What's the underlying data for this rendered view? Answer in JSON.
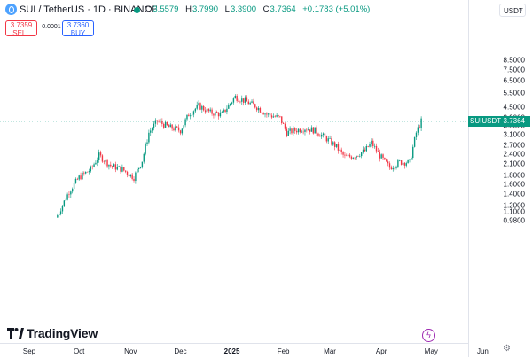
{
  "symbol": {
    "title": "SUI / TetherUS · 1D · BINANCE",
    "ohlc": [
      {
        "label": "O",
        "value": "3.5579"
      },
      {
        "label": "H",
        "value": "3.7990"
      },
      {
        "label": "L",
        "value": "3.3900"
      },
      {
        "label": "C",
        "value": "3.7364"
      }
    ],
    "change": "+0.1783 (+5.01%)"
  },
  "trade": {
    "sell_price": "3.7359",
    "sell_label": "SELL",
    "spread": "0.0001",
    "buy_price": "3.7360",
    "buy_label": "BUY"
  },
  "currency": "USDT",
  "current_price_label": {
    "name": "SUIUSDT",
    "value": "3.7364"
  },
  "branding": "TradingView",
  "colors": {
    "up": "#089981",
    "down": "#f23645",
    "accent": "#2962ff"
  },
  "chart_data": {
    "type": "candlestick",
    "title": "SUI / TetherUS · 1D · BINANCE",
    "y_scale": "log",
    "ylim": [
      0.95,
      9.0
    ],
    "y_ticks": [
      "8.5000",
      "7.5000",
      "6.5000",
      "5.5000",
      "4.5000",
      "3.9000",
      "3.5000",
      "3.1000",
      "2.7000",
      "2.4000",
      "2.1000",
      "1.8000",
      "1.6000",
      "1.4000",
      "1.2000",
      "1.1000",
      "0.9800"
    ],
    "x_ticks": [
      {
        "label": "Sep",
        "bold": false
      },
      {
        "label": "Oct",
        "bold": false
      },
      {
        "label": "Nov",
        "bold": false
      },
      {
        "label": "Dec",
        "bold": false
      },
      {
        "label": "2025",
        "bold": true
      },
      {
        "label": "Feb",
        "bold": false
      },
      {
        "label": "Mar",
        "bold": false
      },
      {
        "label": "Apr",
        "bold": false
      },
      {
        "label": "May",
        "bold": false
      },
      {
        "label": "Jun",
        "bold": false
      }
    ],
    "last_price": 3.7364,
    "series_approx_close": [
      {
        "date": "2024-09-18",
        "close": 1.05
      },
      {
        "date": "2024-09-25",
        "close": 1.45
      },
      {
        "date": "2024-10-01",
        "close": 1.75
      },
      {
        "date": "2024-10-08",
        "close": 1.95
      },
      {
        "date": "2024-10-13",
        "close": 2.35
      },
      {
        "date": "2024-10-20",
        "close": 2.05
      },
      {
        "date": "2024-10-27",
        "close": 1.95
      },
      {
        "date": "2024-11-03",
        "close": 1.75
      },
      {
        "date": "2024-11-08",
        "close": 2.2
      },
      {
        "date": "2024-11-12",
        "close": 3.2
      },
      {
        "date": "2024-11-17",
        "close": 3.75
      },
      {
        "date": "2024-11-24",
        "close": 3.45
      },
      {
        "date": "2024-12-01",
        "close": 3.3
      },
      {
        "date": "2024-12-06",
        "close": 4.1
      },
      {
        "date": "2024-12-12",
        "close": 4.6
      },
      {
        "date": "2024-12-19",
        "close": 4.2
      },
      {
        "date": "2024-12-26",
        "close": 4.1
      },
      {
        "date": "2025-01-03",
        "close": 5.2
      },
      {
        "date": "2025-01-07",
        "close": 5.0
      },
      {
        "date": "2025-01-15",
        "close": 4.6
      },
      {
        "date": "2025-01-22",
        "close": 4.1
      },
      {
        "date": "2025-01-30",
        "close": 3.9
      },
      {
        "date": "2025-02-03",
        "close": 3.2
      },
      {
        "date": "2025-02-08",
        "close": 3.3
      },
      {
        "date": "2025-02-14",
        "close": 3.4
      },
      {
        "date": "2025-02-20",
        "close": 3.3
      },
      {
        "date": "2025-02-26",
        "close": 3.0
      },
      {
        "date": "2025-03-04",
        "close": 2.7
      },
      {
        "date": "2025-03-10",
        "close": 2.3
      },
      {
        "date": "2025-03-16",
        "close": 2.35
      },
      {
        "date": "2025-03-22",
        "close": 2.5
      },
      {
        "date": "2025-03-26",
        "close": 2.8
      },
      {
        "date": "2025-03-31",
        "close": 2.35
      },
      {
        "date": "2025-04-06",
        "close": 2.0
      },
      {
        "date": "2025-04-12",
        "close": 2.15
      },
      {
        "date": "2025-04-18",
        "close": 2.15
      },
      {
        "date": "2025-04-22",
        "close": 3.2
      },
      {
        "date": "2025-04-25",
        "close": 3.7364
      }
    ]
  }
}
